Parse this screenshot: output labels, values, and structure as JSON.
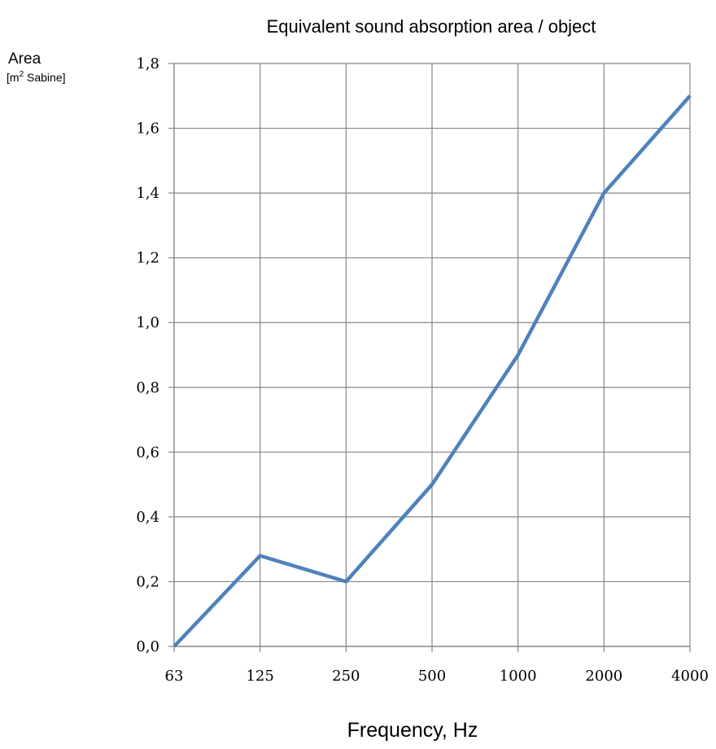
{
  "chart_data": {
    "type": "line",
    "title": "Equivalent sound absorption area / object",
    "ylabel": "Area",
    "ylabel_unit_prefix": "[m",
    "ylabel_unit_superscript": "2",
    "ylabel_unit_suffix": " Sabine]",
    "xlabel": "Frequency, Hz",
    "categories": [
      "63",
      "125",
      "250",
      "500",
      "1000",
      "2000",
      "4000"
    ],
    "series": [
      {
        "values": [
          0.0,
          0.28,
          0.2,
          0.5,
          0.9,
          1.4,
          1.7
        ]
      }
    ],
    "ylim": [
      0,
      1.8
    ],
    "yticks": [
      "0,0",
      "0,2",
      "0,4",
      "0,6",
      "0,8",
      "1,0",
      "1,2",
      "1,4",
      "1,6",
      "1,8"
    ],
    "grid": true,
    "line_color": "#4F81BD",
    "grid_color": "#868686"
  }
}
